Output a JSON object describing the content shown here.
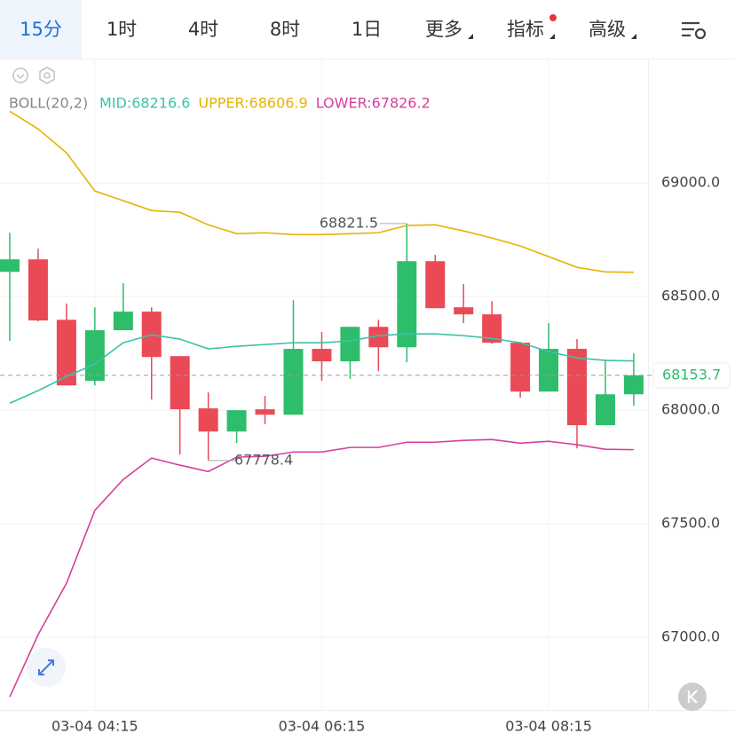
{
  "tabs": [
    "15分",
    "1时",
    "4时",
    "8时",
    "1日",
    "更多",
    "指标",
    "高级"
  ],
  "chart_data": {
    "type": "candlestick",
    "indicator": "BOLL(20,2)",
    "categories": [
      null,
      null,
      null,
      "03-04 04:15",
      null,
      null,
      null,
      null,
      null,
      null,
      null,
      "03-04 06:15",
      null,
      null,
      null,
      null,
      null,
      null,
      null,
      "03-04 08:15",
      null,
      null,
      null
    ],
    "open": [
      68609,
      68664,
      68398,
      68129,
      68352,
      68434,
      68238,
      68008,
      67906,
      68004,
      67980,
      68270,
      68215,
      68367,
      68277,
      68656,
      68453,
      68422,
      68297,
      68082,
      68270,
      67934,
      68070
    ],
    "high": [
      68781,
      68711,
      68469,
      68453,
      68559,
      68453,
      68238,
      68078,
      68000,
      68063,
      68484,
      68344,
      68367,
      68398,
      68821.5,
      68684,
      68555,
      68480,
      68301,
      68383,
      68313,
      68223,
      68250
    ],
    "low": [
      68305,
      68391,
      68109,
      68109,
      68352,
      68047,
      67805,
      67778.4,
      67855,
      67938,
      67980,
      68129,
      68137,
      68172,
      68211,
      68449,
      68383,
      68293,
      68055,
      68082,
      67832,
      67934,
      68020
    ],
    "close": [
      68664,
      68395,
      68109,
      68352,
      68434,
      68234,
      68004,
      67906,
      68000,
      67980,
      68270,
      68215,
      68367,
      68277,
      68656,
      68449,
      68422,
      68297,
      68082,
      68270,
      67934,
      68070,
      68153.7
    ],
    "up_color": "#2ebd6b",
    "down_color": "#ea4a55",
    "series": [
      {
        "name": "MID:68216.6",
        "color": "#3cc2a8",
        "values": [
          68031,
          68086,
          68148,
          68203,
          68297,
          68332,
          68313,
          68270,
          68281,
          68289,
          68297,
          68297,
          68305,
          68328,
          68336,
          68336,
          68328,
          68316,
          68297,
          68258,
          68230,
          68219,
          68216.6
        ]
      },
      {
        "name": "UPPER:68606.9",
        "color": "#e5b300",
        "values": [
          69316,
          69238,
          69133,
          68965,
          68922,
          68879,
          68871,
          68816,
          68777,
          68781,
          68773,
          68773,
          68777,
          68781,
          68813,
          68816,
          68789,
          68758,
          68723,
          68676,
          68629,
          68609,
          68606.9
        ]
      },
      {
        "name": "LOWER:67826.2",
        "color": "#d63f9c",
        "values": [
          66738,
          67012,
          67238,
          67559,
          67695,
          67789,
          67758,
          67730,
          67793,
          67797,
          67816,
          67816,
          67836,
          67836,
          67859,
          67859,
          67867,
          67871,
          67855,
          67863,
          67848,
          67828,
          67826.2
        ]
      }
    ],
    "ylim": [
      66680,
      69540
    ],
    "yticks": [
      {
        "value": 67000,
        "label": "67000.0"
      },
      {
        "value": 67500,
        "label": "67500.0"
      },
      {
        "value": 68000,
        "label": "68000.0"
      },
      {
        "value": 68500,
        "label": "68500.0"
      },
      {
        "value": 69000,
        "label": "69000.0"
      }
    ],
    "grid": true
  }
}
